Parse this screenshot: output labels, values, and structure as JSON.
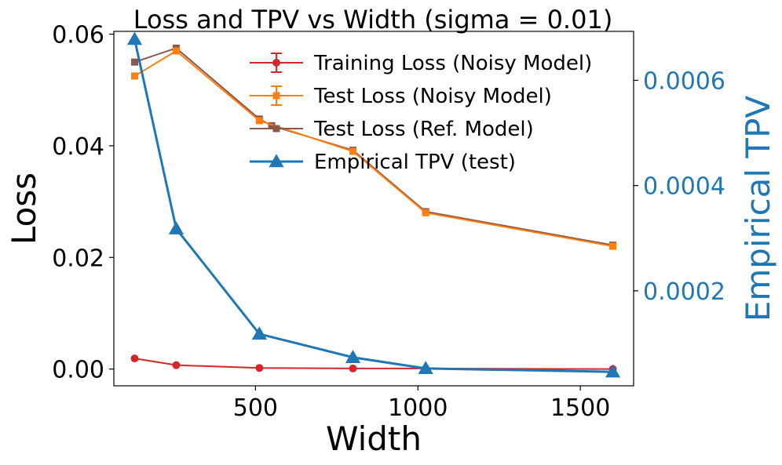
{
  "chart_data": {
    "type": "line",
    "title": "Loss and TPV vs Width (sigma = 0.01)",
    "xlabel": "Width",
    "ylabel_left": "Loss",
    "ylabel_right": "Empirical TPV",
    "xlim": [
      64,
      1664
    ],
    "ylim_left": [
      -0.003,
      0.0605
    ],
    "ylim_right": [
      1.95e-05,
      0.000693
    ],
    "x_ticks": [
      500,
      1000,
      1500
    ],
    "x_tick_labels": [
      "500",
      "1000",
      "1500"
    ],
    "y_left_ticks": [
      0.0,
      0.02,
      0.04,
      0.06
    ],
    "y_left_tick_labels": [
      "0.00",
      "0.02",
      "0.04",
      "0.06"
    ],
    "y_right_ticks": [
      0.0002,
      0.0004,
      0.0006
    ],
    "y_right_tick_labels": [
      "0.0002",
      "0.0004",
      "0.0006"
    ],
    "grid": false,
    "legend_position": "top-right",
    "series": [
      {
        "name": "Training Loss (Noisy Model)",
        "axis": "left",
        "color": "#d62728",
        "marker": "circle",
        "error_bars": true,
        "x": [
          128,
          256,
          512,
          800,
          1024,
          1600
        ],
        "y": [
          0.0019,
          0.0007,
          0.0002,
          0.0001,
          0.0001,
          0.0
        ]
      },
      {
        "name": "Test Loss (Noisy Model)",
        "axis": "left",
        "color": "#ff7f0e",
        "marker": "square",
        "error_bars": true,
        "x": [
          128,
          256,
          512,
          800,
          1024,
          1600
        ],
        "y": [
          0.0525,
          0.057,
          0.0445,
          0.039,
          0.028,
          0.022
        ]
      },
      {
        "name": "Test Loss (Ref. Model)",
        "axis": "left",
        "color": "#8c564b",
        "marker": "square",
        "error_bars": false,
        "x": [
          128,
          256,
          512,
          550,
          800,
          1024,
          1600
        ],
        "y": [
          0.055,
          0.0575,
          0.0448,
          0.0436,
          0.0392,
          0.0282,
          0.0222
        ]
      },
      {
        "name": "Empirical TPV (test)",
        "axis": "right",
        "color": "#1f77b4",
        "marker": "triangle",
        "error_bars": false,
        "x": [
          128,
          256,
          512,
          800,
          1024,
          1600
        ],
        "y": [
          0.000678,
          0.000318,
          0.000118,
          7.35e-05,
          5.25e-05,
          4.6e-05
        ]
      }
    ]
  }
}
